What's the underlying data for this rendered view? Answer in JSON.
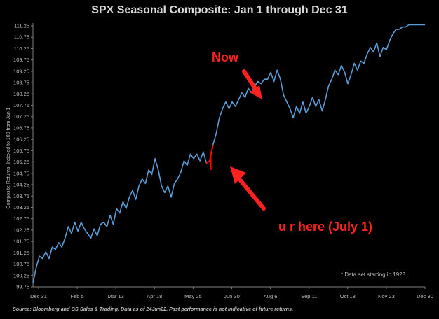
{
  "chart_data": {
    "type": "line",
    "title": "SPX Seasonal Composite: Jan 1 through Dec 31",
    "ylabel": "Composite Returns, Indexed to 100 from Jan 1",
    "xlabel": "",
    "ylim": [
      99.75,
      111.25
    ],
    "yticks": [
      "99.75",
      "100.25",
      "100.75",
      "101.25",
      "101.75",
      "102.25",
      "102.75",
      "103.25",
      "103.75",
      "104.25",
      "104.75",
      "105.25",
      "105.75",
      "106.25",
      "106.75",
      "107.25",
      "107.75",
      "108.25",
      "108.75",
      "109.25",
      "109.75",
      "110.25",
      "110.75",
      "111.25"
    ],
    "xtick_labels": [
      "Dec 31",
      "Feb 5",
      "Mar 13",
      "Apr 18",
      "May 25",
      "Jun 30",
      "Aug 6",
      "Sep 11",
      "Oct 18",
      "Nov 23",
      "Dec 30"
    ],
    "series": [
      {
        "color": "#5b9bd5",
        "x": [
          0,
          3,
          6,
          9,
          12,
          15,
          18,
          21,
          24,
          27,
          30,
          33,
          36,
          39,
          42,
          45,
          48,
          51,
          54,
          57,
          60,
          63,
          66,
          69,
          72,
          75,
          78,
          81,
          84,
          87,
          90,
          93,
          96,
          99,
          102,
          105,
          108,
          111,
          114,
          117,
          120,
          123,
          126,
          129,
          132,
          135,
          138,
          141,
          144,
          147,
          150,
          153,
          156,
          159,
          162,
          165,
          168,
          171,
          174,
          177,
          180,
          183,
          186,
          189,
          192,
          195,
          198,
          201,
          204,
          207,
          210,
          213,
          216,
          219,
          222,
          225,
          228,
          231,
          234,
          237,
          240,
          243,
          246,
          249,
          252,
          255,
          258,
          261,
          264,
          267,
          270,
          273,
          276,
          279,
          282,
          285,
          288,
          291,
          294,
          297,
          300,
          303,
          306,
          309,
          312,
          315,
          318,
          321,
          324,
          327,
          330,
          333,
          336,
          339,
          342,
          345,
          348,
          351,
          354,
          357,
          360,
          363,
          366
        ],
        "values": [
          99.9,
          100.6,
          101.1,
          101.0,
          101.3,
          101.0,
          101.5,
          101.4,
          101.7,
          101.5,
          101.9,
          102.4,
          102.1,
          102.6,
          102.2,
          102.6,
          102.3,
          102.1,
          101.9,
          102.3,
          102.0,
          102.5,
          102.6,
          102.4,
          102.9,
          102.5,
          103.2,
          103.0,
          103.5,
          103.2,
          103.7,
          104.0,
          103.6,
          104.2,
          104.5,
          104.3,
          104.9,
          104.7,
          105.4,
          104.9,
          104.2,
          103.9,
          104.2,
          103.7,
          104.3,
          104.5,
          104.8,
          105.3,
          105.1,
          105.6,
          105.4,
          105.6,
          105.3,
          105.7,
          105.2,
          105.3,
          106.0,
          106.5,
          107.2,
          107.6,
          107.9,
          107.6,
          107.9,
          107.7,
          108.0,
          108.3,
          108.1,
          108.5,
          108.3,
          108.6,
          108.8,
          108.7,
          108.9,
          108.9,
          109.2,
          108.8,
          109.3,
          108.9,
          108.2,
          107.9,
          107.6,
          107.2,
          107.7,
          107.4,
          107.9,
          107.4,
          107.7,
          108.1,
          107.7,
          108.0,
          107.5,
          108.0,
          108.6,
          108.9,
          109.3,
          109.1,
          109.5,
          109.2,
          108.7,
          109.1,
          109.6,
          109.3,
          109.7,
          109.6,
          110.0,
          110.3,
          110.1,
          110.5,
          109.9,
          110.3,
          110.2,
          110.6,
          110.9,
          111.1,
          111.1,
          111.2,
          111.2,
          111.3,
          111.3,
          111.3,
          111.3,
          111.3,
          111.3
        ]
      }
    ],
    "highlight_segment": {
      "color": "#ff0000",
      "x_start": 165,
      "x_end": 168
    },
    "grid": false,
    "legend": "none"
  },
  "annotations": {
    "now": "Now",
    "here": "u r here (July 1)",
    "footnote": "* Data set starting in 1928",
    "source": "Source: Bloomberg and GS Sales & Trading. Data as of 24Jun22. Past performance is not indicative of future returns."
  },
  "colors": {
    "background": "#000000",
    "line": "#5b9bd5",
    "annotation": "#ff2020"
  }
}
